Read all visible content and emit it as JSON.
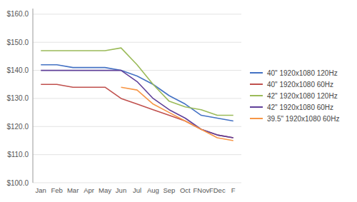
{
  "chart_data": {
    "type": "line",
    "categories": [
      "Jan",
      "Feb",
      "Mar",
      "Apr",
      "May",
      "Jun",
      "Jul",
      "Aug",
      "Sep",
      "Oct",
      "FNov",
      "FDec",
      "F"
    ],
    "series": [
      {
        "name": "40\" 1920x1080 120Hz",
        "color": "#4472C4",
        "values": [
          142,
          142,
          141,
          141,
          141,
          140,
          138,
          135,
          131,
          128,
          124,
          123,
          122
        ]
      },
      {
        "name": "40\" 1920x1080 60Hz",
        "color": "#C0504D",
        "values": [
          135,
          135,
          134,
          134,
          134,
          130,
          128,
          126,
          124,
          122,
          119,
          117,
          116
        ]
      },
      {
        "name": "42\" 1920x1080 120Hz",
        "color": "#9BBB59",
        "values": [
          147,
          147,
          147,
          147,
          147,
          148,
          142,
          135,
          129,
          127,
          126,
          124,
          124
        ]
      },
      {
        "name": "42\" 1920x1080 60Hz",
        "color": "#604099",
        "values": [
          140,
          140,
          140,
          140,
          140,
          140,
          136,
          130,
          126,
          123,
          119,
          117,
          116
        ]
      },
      {
        "name": "39.5\" 1920x1080 60Hz",
        "color": "#F79646",
        "values": [
          null,
          null,
          null,
          null,
          null,
          134,
          133,
          128,
          125,
          122,
          119,
          116,
          115
        ]
      }
    ],
    "ylim": [
      100,
      162
    ],
    "yticks": [
      {
        "value": 100.0,
        "label": "$100.0"
      },
      {
        "value": 110.0,
        "label": "$110.0"
      },
      {
        "value": 120.0,
        "label": "$120.0"
      },
      {
        "value": 130.0,
        "label": "$130.0"
      },
      {
        "value": 140.0,
        "label": "$140.0"
      },
      {
        "value": 150.0,
        "label": "$150.0"
      },
      {
        "value": 160.0,
        "label": "$160.0"
      }
    ],
    "grid": true,
    "legend": "right"
  }
}
